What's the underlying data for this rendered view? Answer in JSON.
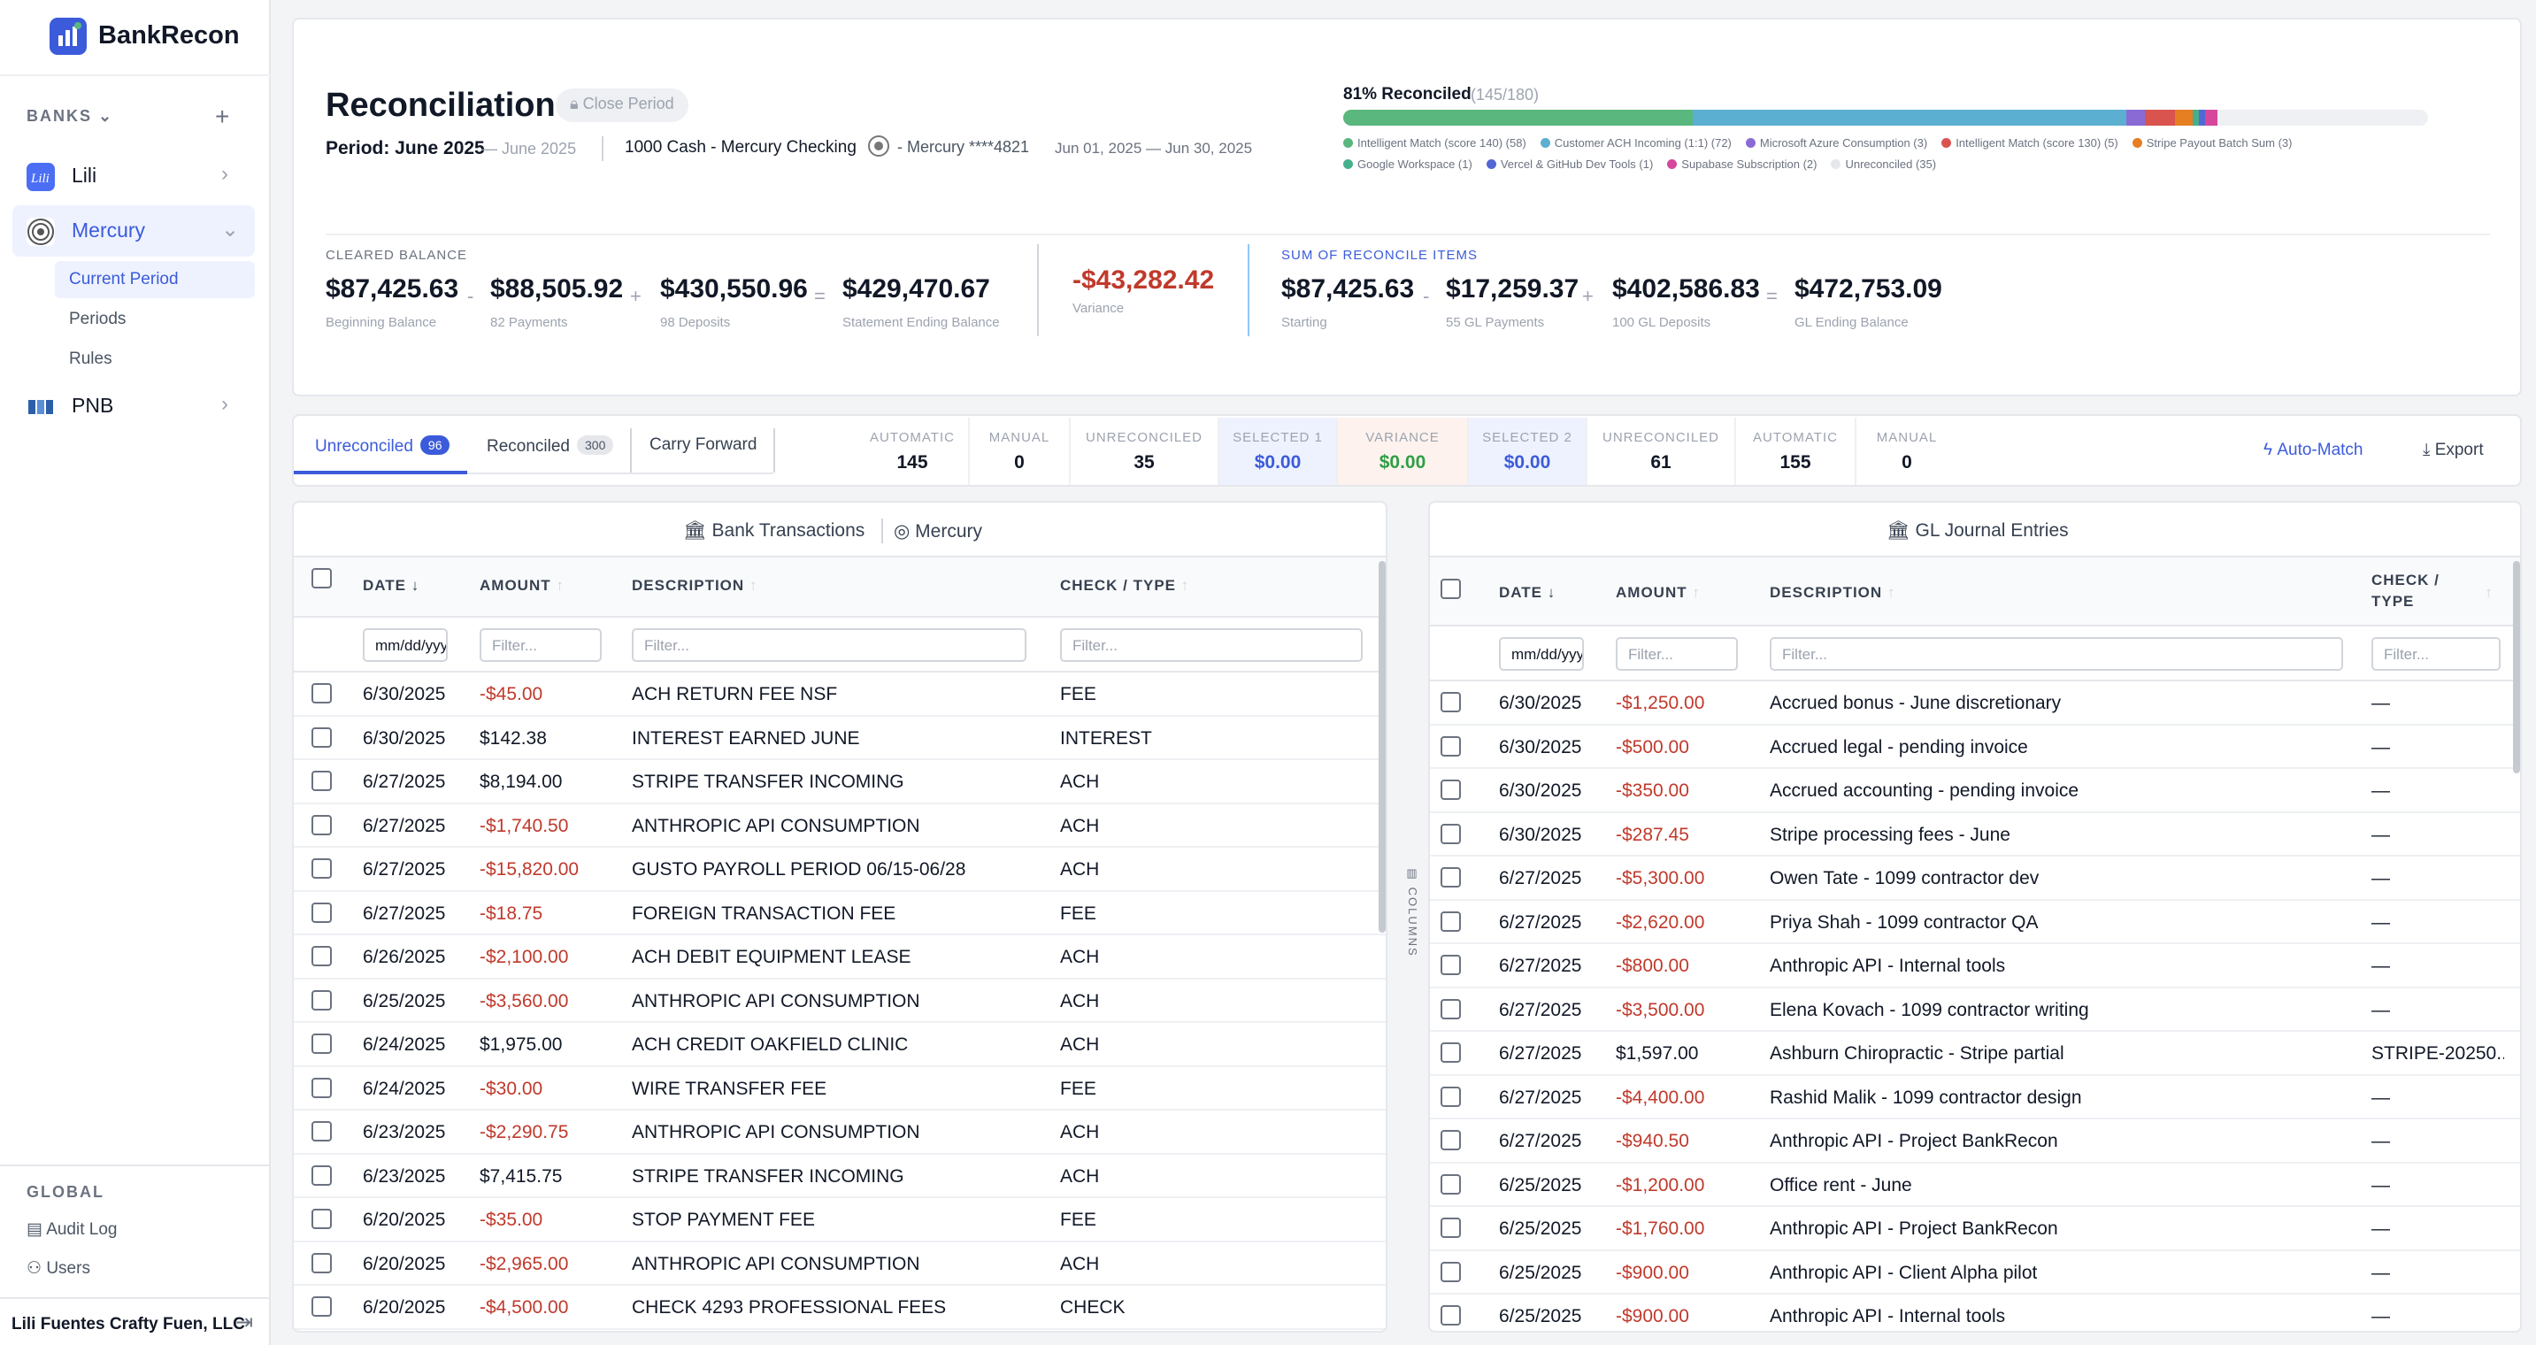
{
  "app": {
    "name": "BankRecon"
  },
  "sidebar": {
    "banks_header": "BANKS",
    "banks": [
      {
        "label": "Lili"
      },
      {
        "label": "Mercury",
        "children": [
          "Current Period",
          "Periods",
          "Rules"
        ]
      },
      {
        "label": "PNB"
      }
    ],
    "global_header": "GLOBAL",
    "global_links": [
      "Audit Log",
      "Users"
    ],
    "company": "Lili Fuentes Crafty Fuen, LLC"
  },
  "header": {
    "title": "Reconciliation",
    "close_period": "Close Period",
    "period": "Period: June 2025",
    "period_sub": "— June 2025",
    "account": "1000 Cash - Mercury Checking",
    "bank_meta": "- Mercury ****4821",
    "date_range": "Jun 01, 2025 — Jun 30, 2025",
    "progress_label": "81% Reconciled",
    "progress_count": "(145/180)",
    "progress_fraction": 0.81,
    "legend": [
      {
        "label": "Intelligent Match (score 140) (58)",
        "color": "#5ab77e",
        "value": 58
      },
      {
        "label": "Customer ACH Incoming (1:1) (72)",
        "color": "#5bafd1",
        "value": 72
      },
      {
        "label": "Microsoft Azure Consumption (3)",
        "color": "#8a6bd6",
        "value": 3
      },
      {
        "label": "Intelligent Match (score 130) (5)",
        "color": "#d9534f",
        "value": 5
      },
      {
        "label": "Stripe Payout Batch Sum (3)",
        "color": "#e67e22",
        "value": 3
      },
      {
        "label": "Google Workspace (1)",
        "color": "#45b08c",
        "value": 1
      },
      {
        "label": "Vercel & GitHub Dev Tools (1)",
        "color": "#5468d4",
        "value": 1
      },
      {
        "label": "Supabase Subscription (2)",
        "color": "#d6479b",
        "value": 2
      },
      {
        "label": "Unreconciled (35)",
        "color": "#e5e7eb",
        "value": 35
      }
    ],
    "cleared": {
      "caption": "CLEARED BALANCE",
      "beginning": "$87,425.63",
      "beginning_label": "Beginning Balance",
      "payments": "$88,505.92",
      "payments_label": "82 Payments",
      "deposits": "$430,550.96",
      "deposits_label": "98 Deposits",
      "ending": "$429,470.67",
      "ending_label": "Statement Ending Balance"
    },
    "variance": {
      "value": "-$43,282.42",
      "label": "Variance"
    },
    "reconcile": {
      "caption": "SUM OF RECONCILE ITEMS",
      "starting": "$87,425.63",
      "starting_label": "Starting",
      "payments": "$17,259.37",
      "payments_label": "55 GL Payments",
      "deposits": "$402,586.83",
      "deposits_label": "100 GL Deposits",
      "ending": "$472,753.09",
      "ending_label": "GL Ending Balance"
    }
  },
  "toolbar": {
    "tabs": [
      {
        "label": "Unreconciled",
        "count": "96"
      },
      {
        "label": "Reconciled",
        "count": "300"
      },
      {
        "label": "Carry Forward"
      }
    ],
    "stats": [
      {
        "label": "AUTOMATIC",
        "value": "145"
      },
      {
        "label": "MANUAL",
        "value": "0"
      },
      {
        "label": "UNRECONCILED",
        "value": "35"
      },
      {
        "label": "SELECTED 1",
        "value": "$0.00"
      },
      {
        "label": "VARIANCE",
        "value": "$0.00"
      },
      {
        "label": "SELECTED 2",
        "value": "$0.00"
      },
      {
        "label": "UNRECONCILED",
        "value": "61"
      },
      {
        "label": "AUTOMATIC",
        "value": "155"
      },
      {
        "label": "MANUAL",
        "value": "0"
      }
    ],
    "auto_match": "Auto-Match",
    "export": "Export"
  },
  "bank_table": {
    "title": "Bank Transactions",
    "bank": "Mercury",
    "columns": [
      "DATE",
      "AMOUNT",
      "DESCRIPTION",
      "CHECK / TYPE"
    ],
    "date_placeholder": "mm/dd/yyyy",
    "filter_placeholder": "Filter...",
    "rows": [
      [
        "6/30/2025",
        "-$45.00",
        "ACH RETURN FEE NSF",
        "FEE"
      ],
      [
        "6/30/2025",
        "$142.38",
        "INTEREST EARNED JUNE",
        "INTEREST"
      ],
      [
        "6/27/2025",
        "$8,194.00",
        "STRIPE TRANSFER INCOMING",
        "ACH"
      ],
      [
        "6/27/2025",
        "-$1,740.50",
        "ANTHROPIC API CONSUMPTION",
        "ACH"
      ],
      [
        "6/27/2025",
        "-$15,820.00",
        "GUSTO PAYROLL PERIOD 06/15-06/28",
        "ACH"
      ],
      [
        "6/27/2025",
        "-$18.75",
        "FOREIGN TRANSACTION FEE",
        "FEE"
      ],
      [
        "6/26/2025",
        "-$2,100.00",
        "ACH DEBIT EQUIPMENT LEASE",
        "ACH"
      ],
      [
        "6/25/2025",
        "-$3,560.00",
        "ANTHROPIC API CONSUMPTION",
        "ACH"
      ],
      [
        "6/24/2025",
        "$1,975.00",
        "ACH CREDIT OAKFIELD CLINIC",
        "ACH"
      ],
      [
        "6/24/2025",
        "-$30.00",
        "WIRE TRANSFER FEE",
        "FEE"
      ],
      [
        "6/23/2025",
        "-$2,290.75",
        "ANTHROPIC API CONSUMPTION",
        "ACH"
      ],
      [
        "6/23/2025",
        "$7,415.75",
        "STRIPE TRANSFER INCOMING",
        "ACH"
      ],
      [
        "6/20/2025",
        "-$35.00",
        "STOP PAYMENT FEE",
        "FEE"
      ],
      [
        "6/20/2025",
        "-$2,965.00",
        "ANTHROPIC API CONSUMPTION",
        "ACH"
      ],
      [
        "6/20/2025",
        "-$4,500.00",
        "CHECK 4293 PROFESSIONAL FEES",
        "CHECK"
      ]
    ]
  },
  "columns_toggle": "COLUMNS",
  "gl_table": {
    "title": "GL Journal Entries",
    "columns": [
      "DATE",
      "AMOUNT",
      "DESCRIPTION",
      "CHECK /",
      "TYPE"
    ],
    "date_placeholder": "mm/dd/yyyy",
    "filter_placeholder": "Filter...",
    "rows": [
      [
        "6/30/2025",
        "-$1,250.00",
        "Accrued bonus - June discretionary",
        "—"
      ],
      [
        "6/30/2025",
        "-$500.00",
        "Accrued legal - pending invoice",
        "—"
      ],
      [
        "6/30/2025",
        "-$350.00",
        "Accrued accounting - pending invoice",
        "—"
      ],
      [
        "6/30/2025",
        "-$287.45",
        "Stripe processing fees - June",
        "—"
      ],
      [
        "6/27/2025",
        "-$5,300.00",
        "Owen Tate - 1099 contractor dev",
        "—"
      ],
      [
        "6/27/2025",
        "-$2,620.00",
        "Priya Shah - 1099 contractor QA",
        "—"
      ],
      [
        "6/27/2025",
        "-$800.00",
        "Anthropic API - Internal tools",
        "—"
      ],
      [
        "6/27/2025",
        "-$3,500.00",
        "Elena Kovach - 1099 contractor writing",
        "—"
      ],
      [
        "6/27/2025",
        "$1,597.00",
        "Ashburn Chiropractic - Stripe partial",
        "STRIPE-20250..."
      ],
      [
        "6/27/2025",
        "-$4,400.00",
        "Rashid Malik - 1099 contractor design",
        "—"
      ],
      [
        "6/27/2025",
        "-$940.50",
        "Anthropic API - Project BankRecon",
        "—"
      ],
      [
        "6/25/2025",
        "-$1,200.00",
        "Office rent - June",
        "—"
      ],
      [
        "6/25/2025",
        "-$1,760.00",
        "Anthropic API - Project BankRecon",
        "—"
      ],
      [
        "6/25/2025",
        "-$900.00",
        "Anthropic API - Client Alpha pilot",
        "—"
      ],
      [
        "6/25/2025",
        "-$900.00",
        "Anthropic API - Internal tools",
        "—"
      ]
    ]
  }
}
